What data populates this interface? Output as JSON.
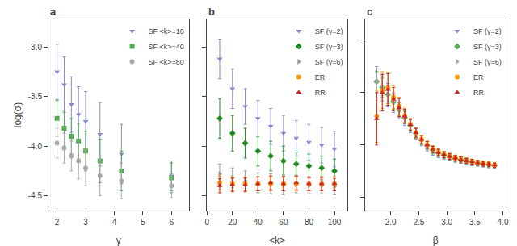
{
  "chart_data": [
    {
      "type": "scatter",
      "title": "a",
      "xlabel": "γ",
      "ylabel": "log(σ)",
      "xlim": [
        1.7,
        6.6
      ],
      "ylim": [
        -4.65,
        -2.72
      ],
      "xticks": [
        2,
        3,
        4,
        5,
        6
      ],
      "yticks": [
        -4.5,
        {
          "value": -4.0,
          "label": "-4.0"
        },
        -3.5,
        {
          "value": -3.0,
          "label": "-3.0"
        }
      ],
      "grid": false,
      "legend": "upper right",
      "series": [
        {
          "name": "SF <k>=10",
          "color": "#8888cc",
          "marker": "triangle-down",
          "x": [
            2.0,
            2.25,
            2.5,
            2.75,
            3.0,
            3.5,
            4.25,
            6.0
          ],
          "values": [
            -3.25,
            -3.38,
            -3.58,
            -3.68,
            -3.75,
            -3.88,
            -4.08,
            -4.3
          ],
          "yerr": [
            0.28,
            0.28,
            0.28,
            0.28,
            0.3,
            0.32,
            0.3,
            0.15
          ]
        },
        {
          "name": "SF <k>=40",
          "color": "#55aa55",
          "marker": "square",
          "x": [
            2.0,
            2.25,
            2.5,
            2.75,
            3.0,
            3.5,
            4.25,
            6.0
          ],
          "values": [
            -3.72,
            -3.82,
            -3.9,
            -3.95,
            -4.05,
            -4.15,
            -4.25,
            -4.32
          ],
          "yerr": [
            0.18,
            0.18,
            0.18,
            0.18,
            0.2,
            0.22,
            0.2,
            0.15
          ]
        },
        {
          "name": "SF <k>=80",
          "color": "#aaaaaa",
          "marker": "circle",
          "x": [
            2.0,
            2.25,
            2.5,
            2.75,
            3.0,
            3.5,
            4.25,
            6.0
          ],
          "values": [
            -3.97,
            -4.02,
            -4.1,
            -4.15,
            -4.22,
            -4.3,
            -4.35,
            -4.4
          ],
          "yerr": [
            0.15,
            0.15,
            0.15,
            0.18,
            0.18,
            0.2,
            0.18,
            0.12
          ]
        }
      ]
    },
    {
      "type": "scatter",
      "title": "b",
      "xlabel": "<k>",
      "xlim": [
        0,
        110
      ],
      "ylim": [
        -4.65,
        -2.72
      ],
      "xticks": [
        0,
        20,
        40,
        60,
        80,
        100
      ],
      "yticks": [
        -4.5,
        -4.0,
        -3.5,
        -3.0
      ],
      "tick_labels": "x",
      "grid": false,
      "legend": "upper right",
      "series": [
        {
          "name": "SF (γ=2)",
          "color": "#8888cc",
          "marker": "triangle-down",
          "x": [
            10,
            20,
            30,
            40,
            50,
            60,
            70,
            80,
            90,
            100
          ],
          "values": [
            -3.12,
            -3.42,
            -3.6,
            -3.72,
            -3.8,
            -3.87,
            -3.92,
            -3.96,
            -3.99,
            -4.03
          ],
          "yerr": [
            0.2,
            0.2,
            0.18,
            0.18,
            0.18,
            0.18,
            0.18,
            0.18,
            0.18,
            0.18
          ]
        },
        {
          "name": "SF (γ=3)",
          "color": "#228822",
          "marker": "diamond",
          "x": [
            10,
            20,
            30,
            40,
            50,
            60,
            70,
            80,
            90,
            100
          ],
          "values": [
            -3.72,
            -3.87,
            -3.97,
            -4.05,
            -4.1,
            -4.15,
            -4.18,
            -4.2,
            -4.22,
            -4.25
          ],
          "yerr": [
            0.2,
            0.18,
            0.15,
            0.15,
            0.15,
            0.15,
            0.12,
            0.12,
            0.12,
            0.12
          ]
        },
        {
          "name": "SF (γ=6)",
          "color": "#999999",
          "marker": "triangle-right",
          "x": [
            10,
            20,
            30,
            40,
            50,
            60,
            70,
            80,
            90,
            100
          ],
          "values": [
            -4.28,
            -4.32,
            -4.35,
            -4.37,
            -4.38,
            -4.39,
            -4.39,
            -4.4,
            -4.4,
            -4.41
          ],
          "yerr": [
            0.1,
            0.1,
            0.1,
            0.1,
            0.1,
            0.1,
            0.08,
            0.08,
            0.08,
            0.08
          ]
        },
        {
          "name": "ER",
          "color": "#ff9900",
          "marker": "circle",
          "x": [
            10,
            20,
            30,
            40,
            50,
            60,
            70,
            80,
            90,
            100
          ],
          "values": [
            -4.37,
            -4.38,
            -4.38,
            -4.38,
            -4.38,
            -4.38,
            -4.38,
            -4.38,
            -4.38,
            -4.38
          ],
          "yerr": [
            0.07,
            0.07,
            0.07,
            0.07,
            0.07,
            0.07,
            0.07,
            0.07,
            0.07,
            0.07
          ]
        },
        {
          "name": "RR",
          "color": "#cc2222",
          "marker": "triangle-up",
          "x": [
            10,
            20,
            30,
            40,
            50,
            60,
            70,
            80,
            90,
            100
          ],
          "values": [
            -4.4,
            -4.39,
            -4.39,
            -4.38,
            -4.37,
            -4.38,
            -4.37,
            -4.38,
            -4.38,
            -4.38
          ],
          "yerr": [
            0.07,
            0.07,
            0.07,
            0.07,
            0.07,
            0.07,
            0.07,
            0.07,
            0.07,
            0.07
          ]
        }
      ]
    },
    {
      "type": "scatter",
      "title": "c",
      "xlabel": "β",
      "xlim": [
        1.55,
        4.05
      ],
      "ylim": [
        -5.5,
        1.8
      ],
      "xticks": [
        {
          "value": 2.0,
          "label": "2.0"
        },
        2.5,
        {
          "value": 3.0,
          "label": "3.0"
        },
        3.5,
        {
          "value": 4.0,
          "label": "4.0"
        }
      ],
      "yticks": [
        1,
        -1,
        -3,
        -5
      ],
      "tick_labels": "x",
      "grid": false,
      "legend": "upper right",
      "series": [
        {
          "name": "SF (γ=2)",
          "color": "#8888cc",
          "marker": "triangle-down",
          "x": [
            1.75,
            1.85,
            1.95,
            2.05,
            2.15,
            2.25,
            2.35,
            2.45,
            2.55,
            2.65,
            2.75,
            2.85,
            2.95,
            3.05,
            3.15,
            3.25,
            3.35,
            3.45,
            3.55,
            3.65,
            3.75,
            3.85
          ],
          "values": [
            -0.6,
            -0.82,
            -1.1,
            -1.38,
            -1.68,
            -1.98,
            -2.28,
            -2.57,
            -2.83,
            -3.05,
            -3.22,
            -3.33,
            -3.4,
            -3.47,
            -3.53,
            -3.58,
            -3.63,
            -3.67,
            -3.71,
            -3.74,
            -3.77,
            -3.8
          ],
          "yerr": [
            0.6,
            0.5,
            0.45,
            0.38,
            0.32,
            0.28,
            0.25,
            0.22,
            0.2,
            0.18,
            0.17,
            0.15,
            0.15,
            0.13,
            0.13,
            0.12,
            0.12,
            0.12,
            0.1,
            0.1,
            0.1,
            0.1
          ]
        },
        {
          "name": "SF (γ=3)",
          "color": "#55aa55",
          "marker": "diamond",
          "x": [
            1.75,
            1.85,
            1.95,
            2.05,
            2.15,
            2.25,
            2.35,
            2.45,
            2.55,
            2.65,
            2.75,
            2.85,
            2.95,
            3.05,
            3.15,
            3.25,
            3.35,
            3.45,
            3.55,
            3.65,
            3.75,
            3.85
          ],
          "values": [
            -0.58,
            -0.8,
            -1.07,
            -1.35,
            -1.65,
            -1.95,
            -2.26,
            -2.55,
            -2.81,
            -3.02,
            -3.19,
            -3.3,
            -3.38,
            -3.45,
            -3.51,
            -3.56,
            -3.61,
            -3.65,
            -3.69,
            -3.72,
            -3.75,
            -3.78
          ],
          "yerr": [
            0.4,
            0.38,
            0.35,
            0.3,
            0.27,
            0.24,
            0.22,
            0.2,
            0.18,
            0.16,
            0.15,
            0.14,
            0.13,
            0.13,
            0.12,
            0.12,
            0.11,
            0.11,
            0.1,
            0.1,
            0.1,
            0.1
          ]
        },
        {
          "name": "SF (γ=6)",
          "color": "#aaaaaa",
          "marker": "triangle-right",
          "x": [
            1.75,
            1.85,
            1.95,
            2.05,
            2.15,
            2.25,
            2.35,
            2.45,
            2.55,
            2.65,
            2.75,
            2.85,
            2.95,
            3.05,
            3.15,
            3.25,
            3.35,
            3.45,
            3.55,
            3.65,
            3.75,
            3.85
          ],
          "values": [
            -0.57,
            -0.78,
            -1.05,
            -1.33,
            -1.63,
            -1.93,
            -2.24,
            -2.54,
            -2.79,
            -3.0,
            -3.17,
            -3.28,
            -3.37,
            -3.44,
            -3.5,
            -3.55,
            -3.6,
            -3.64,
            -3.68,
            -3.71,
            -3.74,
            -3.77
          ],
          "yerr": [
            0.35,
            0.33,
            0.3,
            0.27,
            0.24,
            0.21,
            0.19,
            0.17,
            0.16,
            0.14,
            0.13,
            0.12,
            0.12,
            0.11,
            0.11,
            0.1,
            0.1,
            0.1,
            0.09,
            0.09,
            0.09,
            0.09
          ]
        },
        {
          "name": "ER",
          "color": "#ff9900",
          "marker": "circle",
          "x": [
            1.75,
            1.85,
            1.95,
            2.05,
            2.15,
            2.25,
            2.35,
            2.45,
            2.55,
            2.65,
            2.75,
            2.85,
            2.95,
            3.05,
            3.15,
            3.25,
            3.35,
            3.45,
            3.55,
            3.65,
            3.75,
            3.85
          ],
          "values": [
            -1.9,
            -0.9,
            -0.82,
            -1.18,
            -1.52,
            -1.87,
            -2.2,
            -2.52,
            -2.78,
            -2.99,
            -3.16,
            -3.27,
            -3.36,
            -3.43,
            -3.49,
            -3.54,
            -3.59,
            -3.63,
            -3.67,
            -3.7,
            -3.73,
            -3.76
          ],
          "yerr": [
            1.0,
            0.7,
            0.6,
            0.45,
            0.35,
            0.28,
            0.22,
            0.18,
            0.16,
            0.14,
            0.13,
            0.12,
            0.12,
            0.11,
            0.11,
            0.1,
            0.1,
            0.09,
            0.09,
            0.09,
            0.09,
            0.09
          ]
        },
        {
          "name": "RR",
          "color": "#cc2222",
          "marker": "triangle-up",
          "x": [
            1.75,
            1.85,
            1.95,
            2.05,
            2.15,
            2.25,
            2.35,
            2.45,
            2.55,
            2.65,
            2.75,
            2.85,
            2.95,
            3.05,
            3.15,
            3.25,
            3.35,
            3.45,
            3.55,
            3.65,
            3.75,
            3.85
          ],
          "values": [
            -2.0,
            -1.0,
            -0.88,
            -1.25,
            -1.57,
            -1.9,
            -2.22,
            -2.53,
            -2.79,
            -3.0,
            -3.17,
            -3.28,
            -3.37,
            -3.44,
            -3.5,
            -3.55,
            -3.6,
            -3.64,
            -3.68,
            -3.71,
            -3.74,
            -3.77
          ],
          "yerr": [
            1.0,
            0.7,
            0.6,
            0.45,
            0.35,
            0.27,
            0.21,
            0.17,
            0.15,
            0.13,
            0.12,
            0.12,
            0.11,
            0.11,
            0.1,
            0.1,
            0.09,
            0.09,
            0.09,
            0.09,
            0.08,
            0.08
          ]
        }
      ]
    }
  ]
}
